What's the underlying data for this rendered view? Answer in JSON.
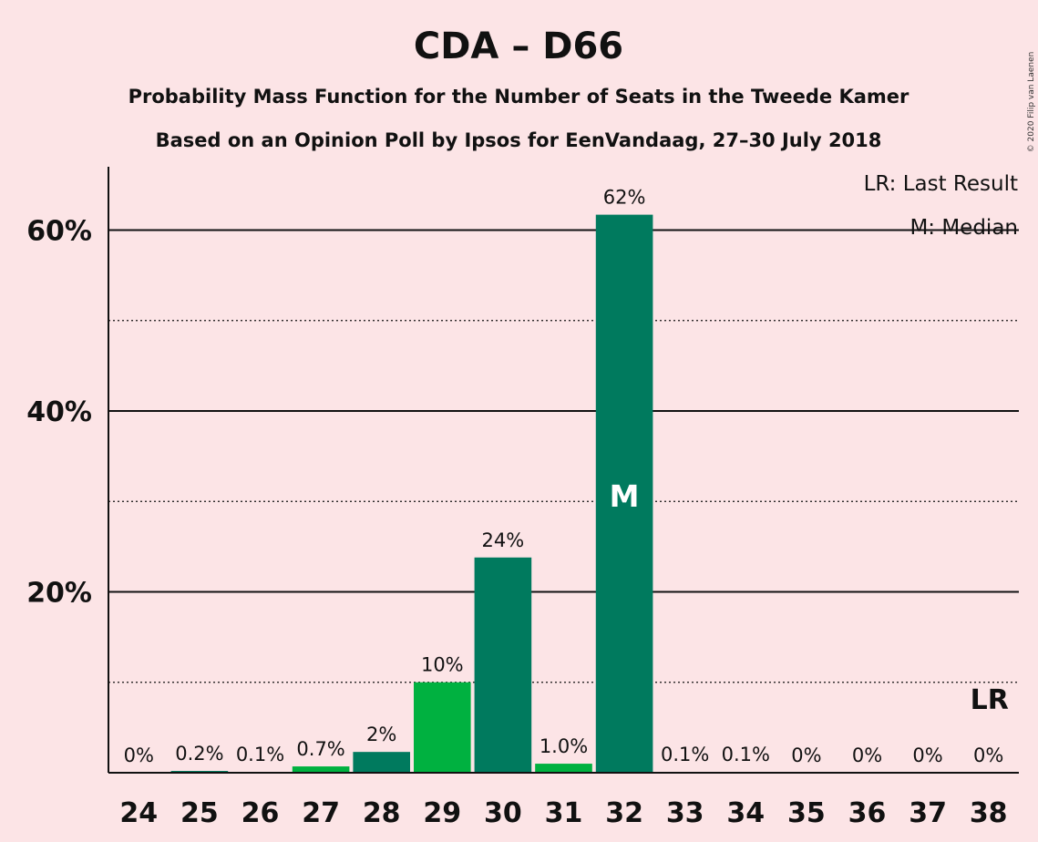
{
  "chart_data": {
    "type": "bar",
    "title": "CDA – D66",
    "subtitle_lines": [
      "Probability Mass Function for the Number of Seats in the Tweede Kamer",
      "Based on an Opinion Poll by Ipsos for EenVandaag, 27–30 July 2018"
    ],
    "categories": [
      "24",
      "25",
      "26",
      "27",
      "28",
      "29",
      "30",
      "31",
      "32",
      "33",
      "34",
      "35",
      "36",
      "37",
      "38"
    ],
    "values": [
      0,
      0.2,
      0.1,
      0.7,
      2.3,
      10.0,
      23.8,
      1.0,
      61.7,
      0.1,
      0.1,
      0,
      0,
      0,
      0
    ],
    "data_labels": [
      "0%",
      "0.2%",
      "0.1%",
      "0.7%",
      "2%",
      "10%",
      "24%",
      "1.0%",
      "62%",
      "0.1%",
      "0.1%",
      "0%",
      "0%",
      "0%",
      "0%"
    ],
    "bar_colors": [
      "#007a5e",
      "#007a5e",
      "#007a5e",
      "#00b140",
      "#007a5e",
      "#00b140",
      "#007a5e",
      "#00b140",
      "#007a5e",
      "#007a5e",
      "#007a5e",
      "#007a5e",
      "#007a5e",
      "#007a5e",
      "#007a5e"
    ],
    "ylim": [
      0,
      67
    ],
    "yticks": [
      20,
      40,
      60
    ],
    "ytick_labels": [
      "20%",
      "40%",
      "60%"
    ],
    "minor_gridlines": [
      10,
      30,
      50
    ],
    "median_seat": "32",
    "median_marker": "M",
    "last_result_seat": "38",
    "last_result_marker": "LR",
    "legend": [
      "LR: Last Result",
      "M: Median"
    ],
    "legend_position": "top-right",
    "xlabel": "",
    "ylabel": ""
  },
  "copyright": "© 2020 Filip van Laenen",
  "colors": {
    "background": "#fce4e6",
    "dark_green": "#007a5e",
    "light_green": "#00b140"
  }
}
